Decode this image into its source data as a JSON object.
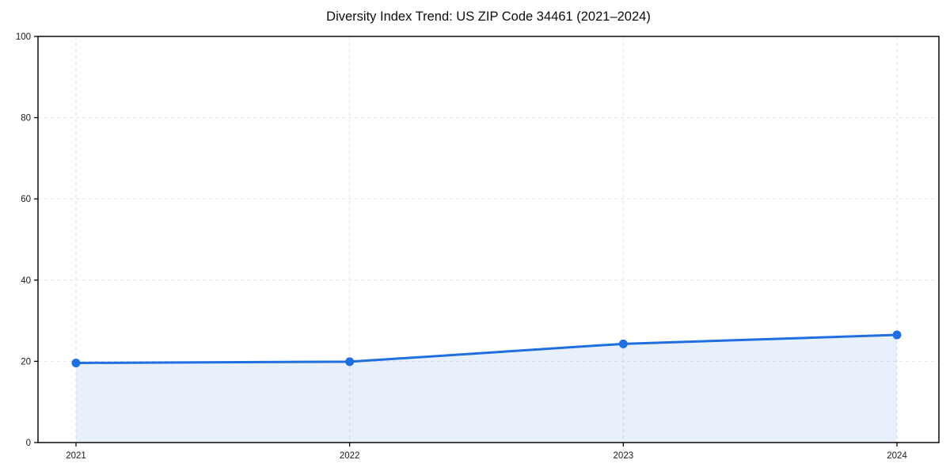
{
  "page": {
    "background": "#ffffff"
  },
  "chart_data": {
    "type": "area",
    "title": "Diversity Index Trend: US ZIP Code 34461 (2021–2024)",
    "x_categories": [
      "2021",
      "2022",
      "2023",
      "2024"
    ],
    "series": [
      {
        "name": "Diversity Index",
        "values": [
          19.6,
          19.9,
          24.3,
          26.5
        ]
      }
    ],
    "xlabel": "",
    "ylabel": "",
    "ylim": [
      0,
      100
    ],
    "yticks": [
      0,
      20,
      40,
      60,
      80,
      100
    ],
    "grid": true,
    "grid_style": "dashed",
    "legend_position": "none",
    "marker": "circle",
    "colors": {
      "line": "#1f6fe0",
      "fill": "rgba(31,111,224,0.10)",
      "grid": "#e2e2e2",
      "axis": "#0a0a0a",
      "tick_text": "#1a1a1a",
      "title_text": "#0d0d0d"
    }
  }
}
